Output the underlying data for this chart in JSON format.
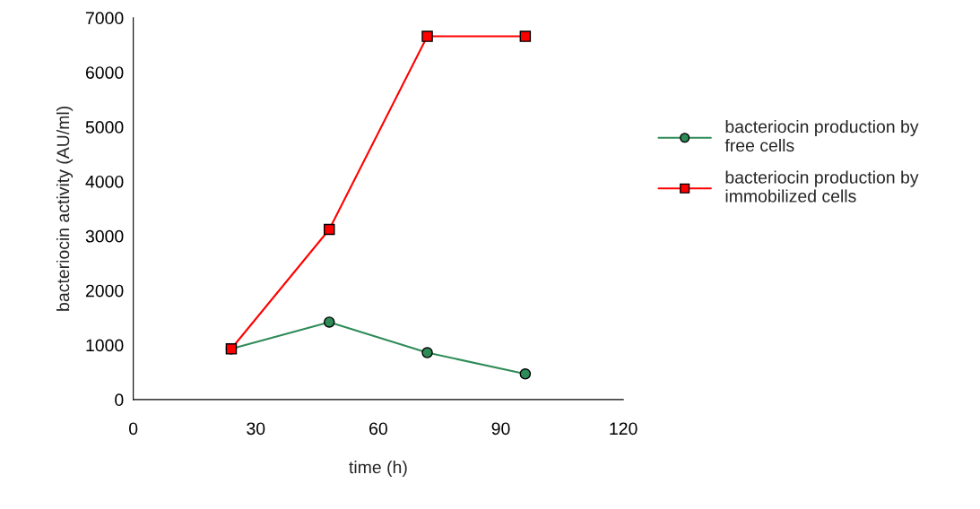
{
  "chart_data": {
    "type": "line",
    "xlabel": "time (h)",
    "ylabel": "bacteriocin activity (AU/ml)",
    "x": [
      24,
      48,
      72,
      96
    ],
    "series": [
      {
        "name": "bacteriocin production by free cells",
        "color": "#2e8b57",
        "marker": "circle",
        "values": [
          930,
          1420,
          860,
          470
        ]
      },
      {
        "name": "bacteriocin production by immobilized cells",
        "color": "#ff0000",
        "marker": "square",
        "values": [
          930,
          3120,
          6660,
          6660
        ]
      }
    ],
    "xlim": [
      0,
      120
    ],
    "xticks": [
      0,
      30,
      60,
      90,
      120
    ],
    "ylim": [
      0,
      7000
    ],
    "yticks": [
      0,
      1000,
      2000,
      3000,
      4000,
      5000,
      6000,
      7000
    ],
    "grid": false,
    "legend": "right",
    "line_style": "solid"
  }
}
